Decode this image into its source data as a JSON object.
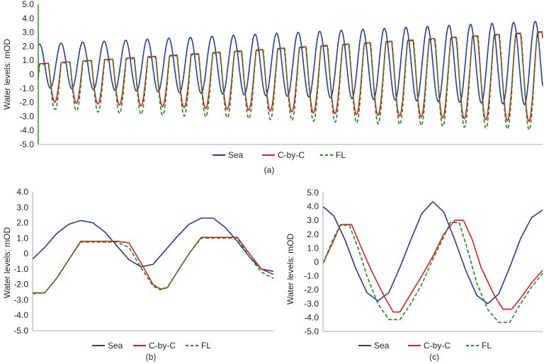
{
  "series_names": [
    "Sea",
    "C-by-C",
    "FL"
  ],
  "colors": {
    "Sea": "#1f3f9a",
    "C-by-C": "#e02020",
    "FL": "#1a8a1a",
    "axis": "#2a9a2a"
  },
  "chart_data": [
    {
      "id": "a",
      "type": "line",
      "caption": "(a)",
      "ylabel": "Water levels: mOD",
      "ylim": [
        -5.0,
        5.0
      ],
      "yticks": [
        "5.0",
        "4.0",
        "3.0",
        "2.0",
        "1.0",
        "0",
        "-1.0",
        "-2.0",
        "-3.0",
        "-4.0",
        "-5.0"
      ],
      "legend": [
        "Sea",
        "C-by-C",
        "FL"
      ],
      "description_of_shape": "Repeating tidal cycles (~23 cycles); sea amplitude grows from ~1.6 to ~2.8; C-by-C and FL show flattened plateaus",
      "params": {
        "cycles": 23.4,
        "sea_mean_start": 0.6,
        "sea_mean_end": 0.8,
        "sea_amp_start": 1.55,
        "sea_amp_end": 3.0
      }
    },
    {
      "id": "b",
      "type": "line",
      "caption": "(b)",
      "ylabel": "Water levels: mOD",
      "ylim": [
        -5.0,
        4.0
      ],
      "yticks": [
        "4.0",
        "3.0",
        "2.0",
        "1.0",
        "0",
        "-1.0",
        "-2.0",
        "-3.0",
        "-4.0",
        "-5.0"
      ],
      "legend": [
        "Sea",
        "C-by-C",
        "FL"
      ],
      "series": [
        {
          "name": "Sea",
          "points": [
            [
              0,
              -0.35
            ],
            [
              0.05,
              0.4
            ],
            [
              0.1,
              1.3
            ],
            [
              0.15,
              1.9
            ],
            [
              0.2,
              2.15
            ],
            [
              0.25,
              2.0
            ],
            [
              0.3,
              1.4
            ],
            [
              0.35,
              0.5
            ],
            [
              0.4,
              -0.4
            ],
            [
              0.45,
              -0.85
            ],
            [
              0.5,
              -0.7
            ],
            [
              0.55,
              0.2
            ],
            [
              0.6,
              1.1
            ],
            [
              0.65,
              1.9
            ],
            [
              0.7,
              2.3
            ],
            [
              0.75,
              2.3
            ],
            [
              0.8,
              1.7
            ],
            [
              0.85,
              0.8
            ],
            [
              0.9,
              -0.2
            ],
            [
              0.95,
              -1.0
            ],
            [
              1.0,
              -1.15
            ]
          ]
        },
        {
          "name": "C-by-C",
          "points": [
            [
              0,
              -2.55
            ],
            [
              0.05,
              -2.55
            ],
            [
              0.1,
              -1.6
            ],
            [
              0.15,
              -0.4
            ],
            [
              0.2,
              0.8
            ],
            [
              0.28,
              0.8
            ],
            [
              0.35,
              0.8
            ],
            [
              0.4,
              0.7
            ],
            [
              0.45,
              -0.6
            ],
            [
              0.5,
              -2.0
            ],
            [
              0.53,
              -2.3
            ],
            [
              0.56,
              -2.2
            ],
            [
              0.6,
              -1.2
            ],
            [
              0.65,
              0.0
            ],
            [
              0.7,
              1.05
            ],
            [
              0.78,
              1.05
            ],
            [
              0.85,
              1.05
            ],
            [
              0.9,
              0.0
            ],
            [
              0.95,
              -1.0
            ],
            [
              1.0,
              -1.35
            ]
          ]
        },
        {
          "name": "FL",
          "points": [
            [
              0,
              -2.6
            ],
            [
              0.05,
              -2.55
            ],
            [
              0.1,
              -1.6
            ],
            [
              0.15,
              -0.4
            ],
            [
              0.2,
              0.75
            ],
            [
              0.28,
              0.75
            ],
            [
              0.35,
              0.75
            ],
            [
              0.4,
              0.4
            ],
            [
              0.45,
              -0.9
            ],
            [
              0.5,
              -2.1
            ],
            [
              0.53,
              -2.35
            ],
            [
              0.56,
              -2.2
            ],
            [
              0.6,
              -1.2
            ],
            [
              0.65,
              0.0
            ],
            [
              0.7,
              1.0
            ],
            [
              0.78,
              1.0
            ],
            [
              0.85,
              1.0
            ],
            [
              0.9,
              -0.2
            ],
            [
              0.95,
              -1.2
            ],
            [
              1.0,
              -1.6
            ]
          ]
        }
      ]
    },
    {
      "id": "c",
      "type": "line",
      "caption": "(c)",
      "ylabel": "Water levels: mOD",
      "ylim": [
        -5.0,
        5.0
      ],
      "yticks": [
        "5.0",
        "4.0",
        "3.0",
        "2.0",
        "1.0",
        "0",
        "-1.0",
        "-2.0",
        "-3.0",
        "-4.0",
        "-5.0"
      ],
      "legend": [
        "Sea",
        "C-by-C",
        "FL"
      ],
      "series": [
        {
          "name": "Sea",
          "points": [
            [
              0,
              4.0
            ],
            [
              0.05,
              3.3
            ],
            [
              0.1,
              1.6
            ],
            [
              0.15,
              -0.5
            ],
            [
              0.2,
              -2.2
            ],
            [
              0.25,
              -2.8
            ],
            [
              0.3,
              -2.2
            ],
            [
              0.35,
              -0.4
            ],
            [
              0.4,
              1.6
            ],
            [
              0.45,
              3.5
            ],
            [
              0.5,
              4.35
            ],
            [
              0.55,
              3.6
            ],
            [
              0.6,
              1.6
            ],
            [
              0.65,
              -0.6
            ],
            [
              0.7,
              -2.4
            ],
            [
              0.75,
              -3.0
            ],
            [
              0.8,
              -2.3
            ],
            [
              0.85,
              -0.4
            ],
            [
              0.9,
              1.7
            ],
            [
              0.95,
              3.2
            ],
            [
              1.0,
              3.75
            ]
          ]
        },
        {
          "name": "C-by-C",
          "points": [
            [
              0,
              -0.1
            ],
            [
              0.05,
              1.6
            ],
            [
              0.08,
              2.7
            ],
            [
              0.13,
              2.7
            ],
            [
              0.17,
              1.2
            ],
            [
              0.22,
              -0.6
            ],
            [
              0.28,
              -2.5
            ],
            [
              0.32,
              -3.6
            ],
            [
              0.35,
              -3.6
            ],
            [
              0.4,
              -2.3
            ],
            [
              0.45,
              -1.0
            ],
            [
              0.5,
              0.4
            ],
            [
              0.55,
              2.0
            ],
            [
              0.6,
              3.0
            ],
            [
              0.64,
              3.0
            ],
            [
              0.68,
              1.6
            ],
            [
              0.72,
              -0.4
            ],
            [
              0.78,
              -2.4
            ],
            [
              0.82,
              -3.4
            ],
            [
              0.86,
              -3.4
            ],
            [
              0.9,
              -2.6
            ],
            [
              0.95,
              -1.5
            ],
            [
              1.0,
              -0.6
            ]
          ]
        },
        {
          "name": "FL",
          "points": [
            [
              0,
              -0.1
            ],
            [
              0.05,
              1.8
            ],
            [
              0.08,
              2.65
            ],
            [
              0.12,
              2.65
            ],
            [
              0.16,
              1.0
            ],
            [
              0.2,
              -1.0
            ],
            [
              0.25,
              -3.0
            ],
            [
              0.3,
              -4.15
            ],
            [
              0.35,
              -4.15
            ],
            [
              0.4,
              -3.0
            ],
            [
              0.45,
              -1.6
            ],
            [
              0.5,
              0.2
            ],
            [
              0.55,
              1.8
            ],
            [
              0.58,
              2.85
            ],
            [
              0.62,
              2.85
            ],
            [
              0.66,
              0.8
            ],
            [
              0.7,
              -1.5
            ],
            [
              0.75,
              -3.4
            ],
            [
              0.8,
              -4.35
            ],
            [
              0.85,
              -4.35
            ],
            [
              0.9,
              -3.0
            ],
            [
              0.95,
              -1.8
            ],
            [
              1.0,
              -0.8
            ]
          ]
        }
      ]
    }
  ]
}
